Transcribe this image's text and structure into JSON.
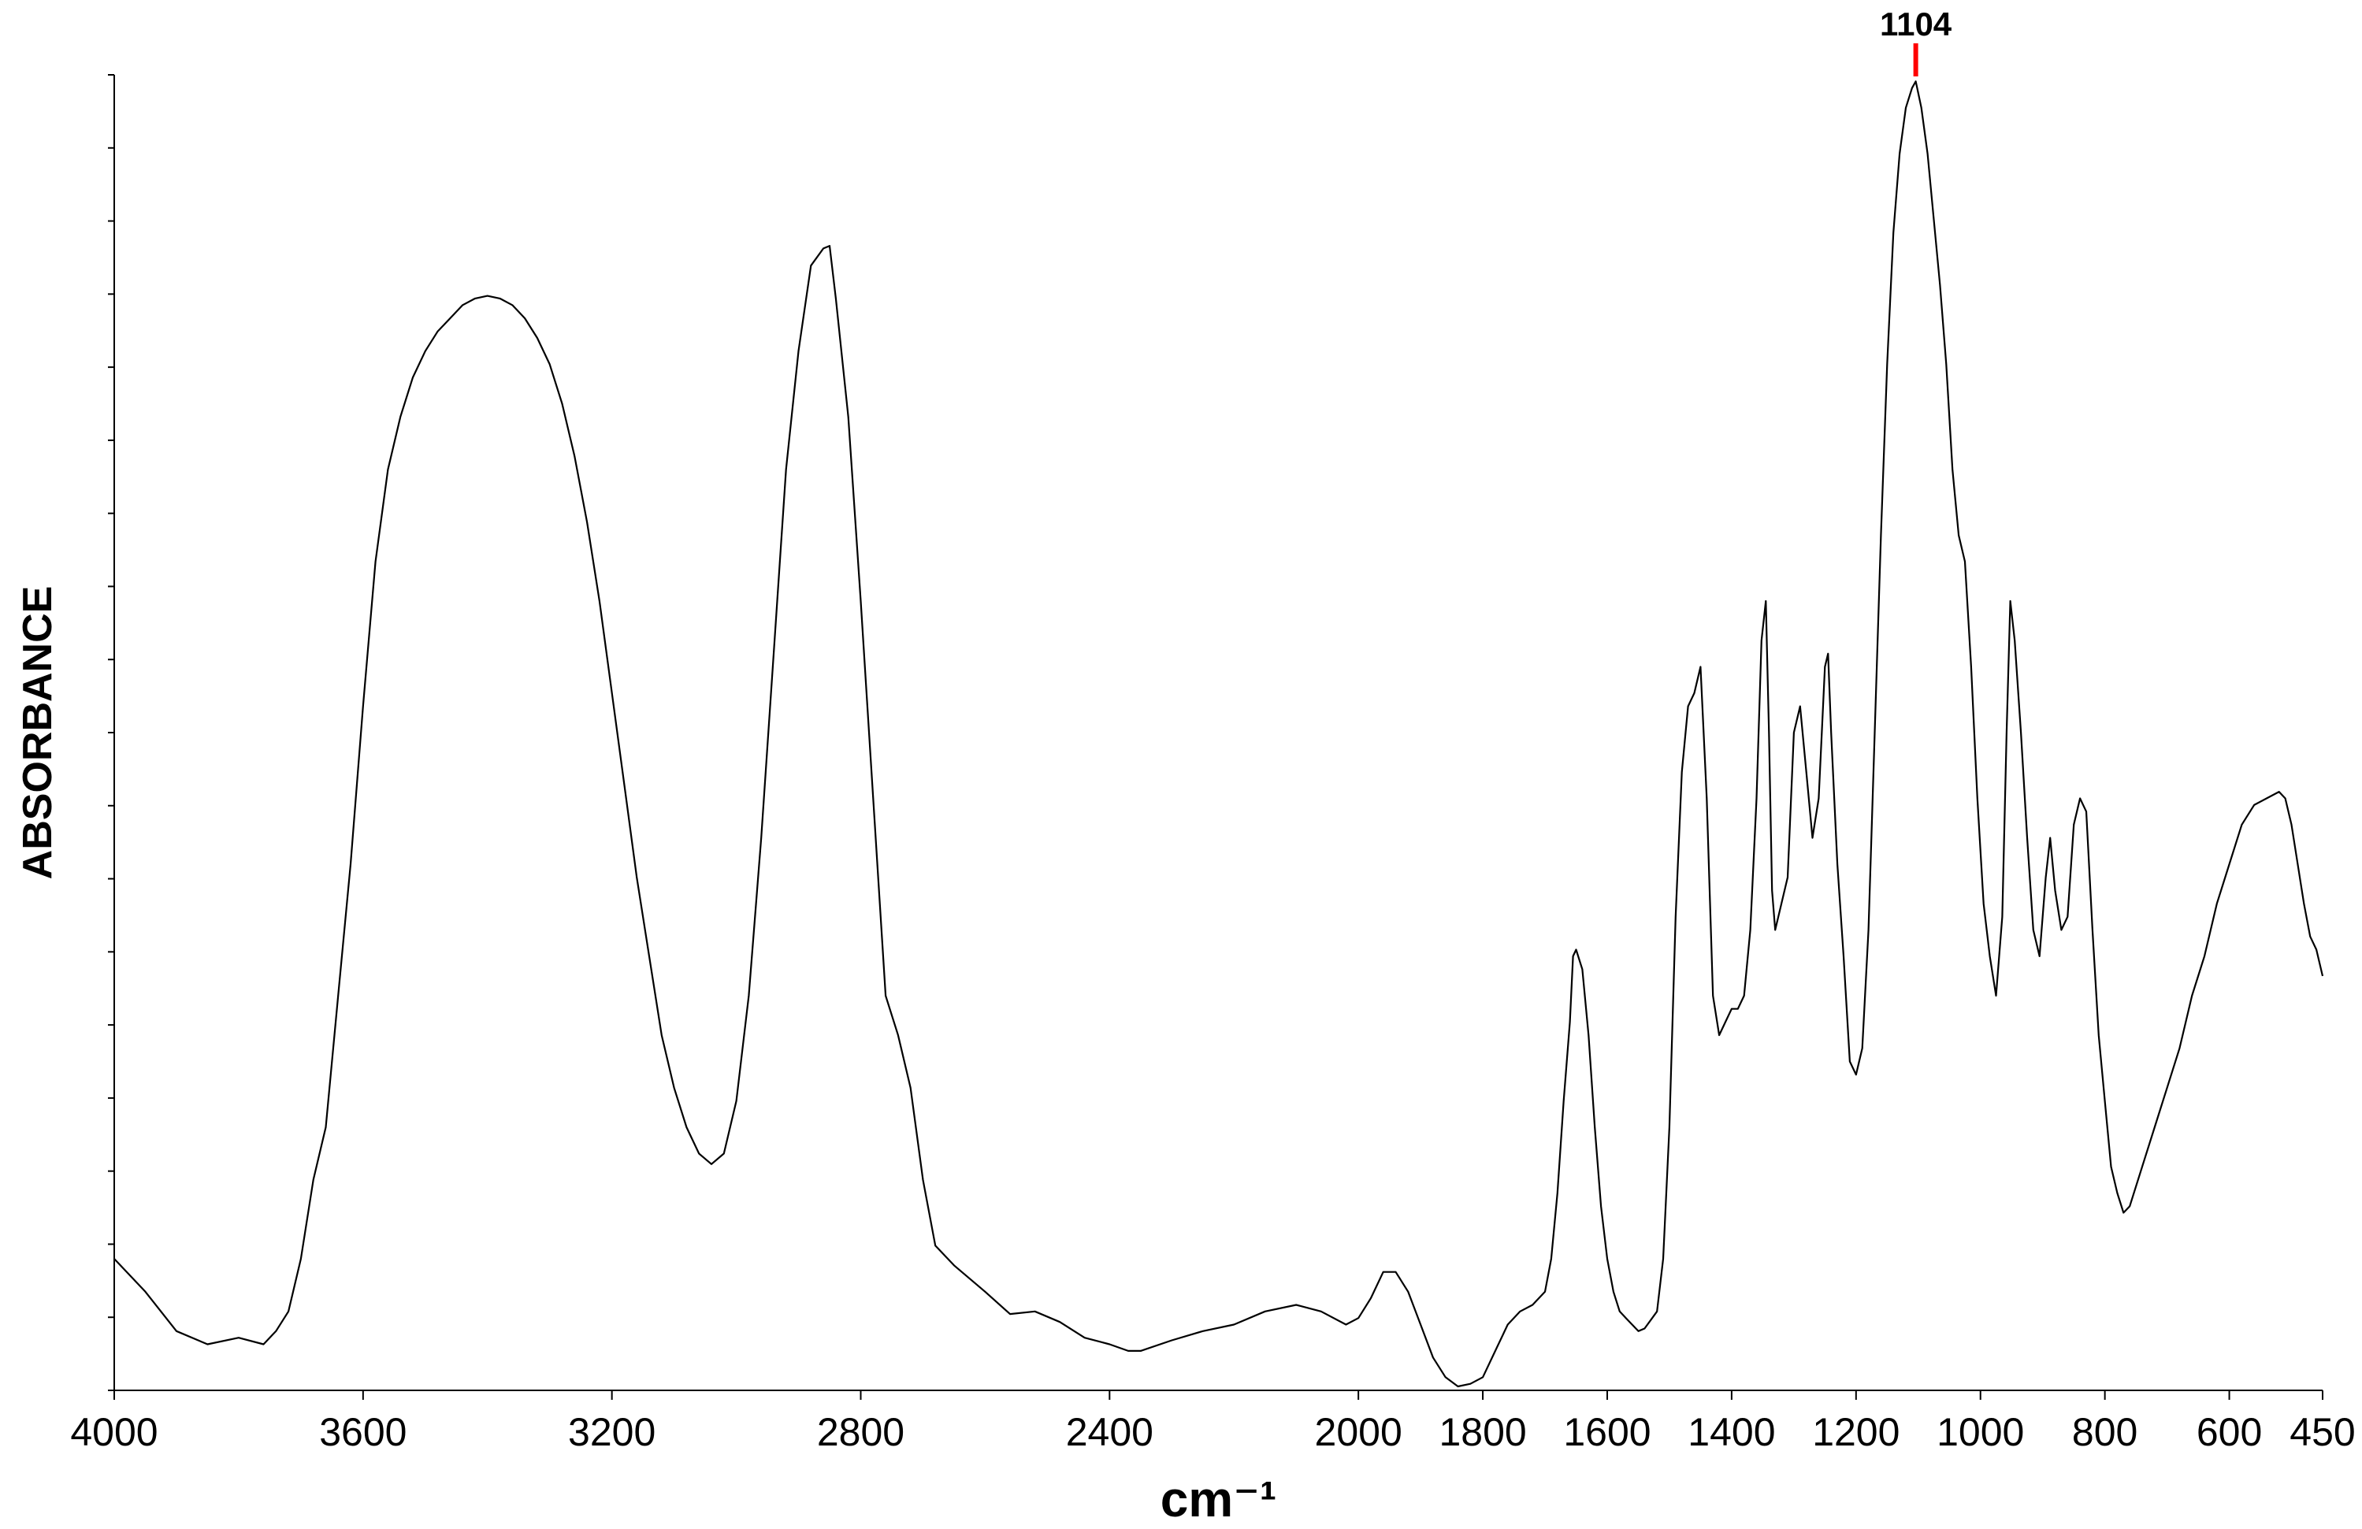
{
  "chart_data": {
    "type": "line",
    "title": "",
    "xlabel": "cm⁻¹",
    "ylabel": "ABSORBANCE",
    "xlim": [
      4000,
      450
    ],
    "x_reversed": true,
    "ylim": [
      0,
      1
    ],
    "y_ticks_labeled": false,
    "y_minor_tick_count": 18,
    "grid": false,
    "legend": "none",
    "x_ticks": [
      4000,
      3600,
      3200,
      2800,
      2400,
      2000,
      1800,
      1600,
      1400,
      1200,
      1000,
      800,
      600,
      450
    ],
    "x_tick_labels": [
      "4000",
      "3600",
      "3200",
      "2800",
      "2400",
      "2000",
      "1800",
      "1600",
      "1400",
      "1200",
      "1000",
      "800",
      "600",
      "450"
    ],
    "annotations": [
      {
        "x": 1104,
        "label": "1104",
        "color": "#ff0000"
      }
    ],
    "series": [
      {
        "color": "#000000",
        "points": [
          [
            4000,
            0.1
          ],
          [
            3950,
            0.075
          ],
          [
            3900,
            0.045
          ],
          [
            3850,
            0.035
          ],
          [
            3800,
            0.04
          ],
          [
            3760,
            0.035
          ],
          [
            3740,
            0.045
          ],
          [
            3720,
            0.06
          ],
          [
            3700,
            0.1
          ],
          [
            3680,
            0.16
          ],
          [
            3660,
            0.2
          ],
          [
            3640,
            0.3
          ],
          [
            3620,
            0.4
          ],
          [
            3600,
            0.52
          ],
          [
            3580,
            0.63
          ],
          [
            3560,
            0.7
          ],
          [
            3540,
            0.74
          ],
          [
            3520,
            0.77
          ],
          [
            3500,
            0.79
          ],
          [
            3480,
            0.805
          ],
          [
            3460,
            0.815
          ],
          [
            3440,
            0.825
          ],
          [
            3420,
            0.83
          ],
          [
            3400,
            0.832
          ],
          [
            3380,
            0.83
          ],
          [
            3360,
            0.825
          ],
          [
            3340,
            0.815
          ],
          [
            3320,
            0.8
          ],
          [
            3300,
            0.78
          ],
          [
            3280,
            0.75
          ],
          [
            3260,
            0.71
          ],
          [
            3240,
            0.66
          ],
          [
            3220,
            0.6
          ],
          [
            3200,
            0.53
          ],
          [
            3180,
            0.46
          ],
          [
            3160,
            0.39
          ],
          [
            3140,
            0.33
          ],
          [
            3120,
            0.27
          ],
          [
            3100,
            0.23
          ],
          [
            3080,
            0.2
          ],
          [
            3060,
            0.18
          ],
          [
            3040,
            0.172
          ],
          [
            3020,
            0.18
          ],
          [
            3000,
            0.22
          ],
          [
            2980,
            0.3
          ],
          [
            2960,
            0.42
          ],
          [
            2940,
            0.56
          ],
          [
            2920,
            0.7
          ],
          [
            2900,
            0.79
          ],
          [
            2880,
            0.855
          ],
          [
            2860,
            0.868
          ],
          [
            2850,
            0.87
          ],
          [
            2840,
            0.83
          ],
          [
            2820,
            0.74
          ],
          [
            2800,
            0.6
          ],
          [
            2780,
            0.45
          ],
          [
            2760,
            0.3
          ],
          [
            2740,
            0.27
          ],
          [
            2720,
            0.23
          ],
          [
            2700,
            0.16
          ],
          [
            2680,
            0.11
          ],
          [
            2650,
            0.095
          ],
          [
            2600,
            0.075
          ],
          [
            2560,
            0.058
          ],
          [
            2520,
            0.06
          ],
          [
            2480,
            0.052
          ],
          [
            2440,
            0.04
          ],
          [
            2400,
            0.035
          ],
          [
            2370,
            0.03
          ],
          [
            2350,
            0.03
          ],
          [
            2300,
            0.038
          ],
          [
            2250,
            0.045
          ],
          [
            2200,
            0.05
          ],
          [
            2150,
            0.06
          ],
          [
            2100,
            0.065
          ],
          [
            2060,
            0.06
          ],
          [
            2020,
            0.05
          ],
          [
            2000,
            0.055
          ],
          [
            1980,
            0.07
          ],
          [
            1960,
            0.09
          ],
          [
            1940,
            0.09
          ],
          [
            1920,
            0.075
          ],
          [
            1900,
            0.05
          ],
          [
            1880,
            0.025
          ],
          [
            1860,
            0.01
          ],
          [
            1840,
            0.003
          ],
          [
            1820,
            0.005
          ],
          [
            1800,
            0.01
          ],
          [
            1780,
            0.03
          ],
          [
            1760,
            0.05
          ],
          [
            1740,
            0.06
          ],
          [
            1720,
            0.065
          ],
          [
            1700,
            0.075
          ],
          [
            1690,
            0.1
          ],
          [
            1680,
            0.15
          ],
          [
            1670,
            0.22
          ],
          [
            1660,
            0.28
          ],
          [
            1655,
            0.33
          ],
          [
            1650,
            0.335
          ],
          [
            1640,
            0.32
          ],
          [
            1630,
            0.27
          ],
          [
            1620,
            0.2
          ],
          [
            1610,
            0.14
          ],
          [
            1600,
            0.1
          ],
          [
            1590,
            0.075
          ],
          [
            1580,
            0.06
          ],
          [
            1570,
            0.055
          ],
          [
            1560,
            0.05
          ],
          [
            1550,
            0.045
          ],
          [
            1540,
            0.047
          ],
          [
            1520,
            0.06
          ],
          [
            1510,
            0.1
          ],
          [
            1500,
            0.2
          ],
          [
            1490,
            0.36
          ],
          [
            1480,
            0.47
          ],
          [
            1470,
            0.52
          ],
          [
            1460,
            0.53
          ],
          [
            1450,
            0.55
          ],
          [
            1440,
            0.45
          ],
          [
            1430,
            0.3
          ],
          [
            1420,
            0.27
          ],
          [
            1410,
            0.28
          ],
          [
            1400,
            0.29
          ],
          [
            1390,
            0.29
          ],
          [
            1380,
            0.3
          ],
          [
            1370,
            0.35
          ],
          [
            1360,
            0.45
          ],
          [
            1352,
            0.57
          ],
          [
            1345,
            0.6
          ],
          [
            1340,
            0.5
          ],
          [
            1335,
            0.38
          ],
          [
            1330,
            0.35
          ],
          [
            1320,
            0.37
          ],
          [
            1310,
            0.39
          ],
          [
            1300,
            0.5
          ],
          [
            1290,
            0.52
          ],
          [
            1280,
            0.47
          ],
          [
            1270,
            0.42
          ],
          [
            1260,
            0.45
          ],
          [
            1250,
            0.55
          ],
          [
            1245,
            0.56
          ],
          [
            1240,
            0.5
          ],
          [
            1230,
            0.4
          ],
          [
            1220,
            0.33
          ],
          [
            1210,
            0.25
          ],
          [
            1200,
            0.24
          ],
          [
            1190,
            0.26
          ],
          [
            1180,
            0.35
          ],
          [
            1170,
            0.5
          ],
          [
            1160,
            0.65
          ],
          [
            1150,
            0.78
          ],
          [
            1140,
            0.88
          ],
          [
            1130,
            0.94
          ],
          [
            1120,
            0.975
          ],
          [
            1110,
            0.99
          ],
          [
            1104,
            0.995
          ],
          [
            1095,
            0.975
          ],
          [
            1085,
            0.94
          ],
          [
            1075,
            0.89
          ],
          [
            1065,
            0.84
          ],
          [
            1055,
            0.78
          ],
          [
            1045,
            0.7
          ],
          [
            1035,
            0.65
          ],
          [
            1025,
            0.63
          ],
          [
            1015,
            0.55
          ],
          [
            1005,
            0.45
          ],
          [
            995,
            0.37
          ],
          [
            985,
            0.33
          ],
          [
            975,
            0.3
          ],
          [
            965,
            0.36
          ],
          [
            958,
            0.5
          ],
          [
            952,
            0.6
          ],
          [
            945,
            0.57
          ],
          [
            935,
            0.5
          ],
          [
            925,
            0.42
          ],
          [
            915,
            0.35
          ],
          [
            905,
            0.33
          ],
          [
            895,
            0.39
          ],
          [
            888,
            0.42
          ],
          [
            880,
            0.38
          ],
          [
            870,
            0.35
          ],
          [
            860,
            0.36
          ],
          [
            850,
            0.43
          ],
          [
            840,
            0.45
          ],
          [
            830,
            0.44
          ],
          [
            820,
            0.35
          ],
          [
            810,
            0.27
          ],
          [
            800,
            0.22
          ],
          [
            790,
            0.17
          ],
          [
            780,
            0.15
          ],
          [
            770,
            0.135
          ],
          [
            760,
            0.14
          ],
          [
            740,
            0.17
          ],
          [
            720,
            0.2
          ],
          [
            700,
            0.23
          ],
          [
            680,
            0.26
          ],
          [
            660,
            0.3
          ],
          [
            640,
            0.33
          ],
          [
            620,
            0.37
          ],
          [
            600,
            0.4
          ],
          [
            580,
            0.43
          ],
          [
            560,
            0.445
          ],
          [
            540,
            0.45
          ],
          [
            520,
            0.455
          ],
          [
            510,
            0.45
          ],
          [
            500,
            0.43
          ],
          [
            490,
            0.4
          ],
          [
            480,
            0.37
          ],
          [
            470,
            0.345
          ],
          [
            460,
            0.335
          ],
          [
            450,
            0.315
          ]
        ]
      }
    ]
  }
}
